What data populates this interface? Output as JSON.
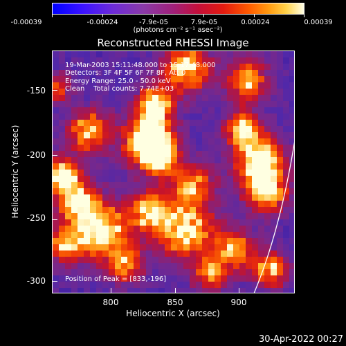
{
  "colorbar": {
    "tick_labels": [
      "-0.00039",
      "-0.00024",
      "-7.9e-05",
      "7.9e-05",
      "0.00024",
      "0.00039"
    ],
    "units": "(photons cm⁻² s⁻¹ asec⁻²)",
    "colors": [
      "#0000ff",
      "#6d2bd8",
      "#a0207a",
      "#e31b10",
      "#ff9a10",
      "#ffffe6"
    ]
  },
  "title": "Reconstructed RHESSI Image",
  "annotation": {
    "time_range": "19-Mar-2003 15:11:48.000 to 15:17:48.000",
    "detectors": "Detectors: 3F 4F 5F 6F 7F 8F, Att 0",
    "energy": "Energy Range: 25.0 - 50.0 keV",
    "method_counts": "Clean    Total counts: 7.74E+03",
    "peak": "Position of Peak = [833,-196]"
  },
  "axes": {
    "x_title": "Heliocentric X (arcsec)",
    "y_title": "Heliocentric Y (arcsec)",
    "x_ticks": [
      "800",
      "850",
      "900"
    ],
    "y_ticks": [
      "-150",
      "-200",
      "-250",
      "-300"
    ],
    "x_range": [
      755,
      942
    ],
    "y_range": [
      -312,
      -126
    ]
  },
  "date_stamp": "30-Apr-2022 00:27"
}
